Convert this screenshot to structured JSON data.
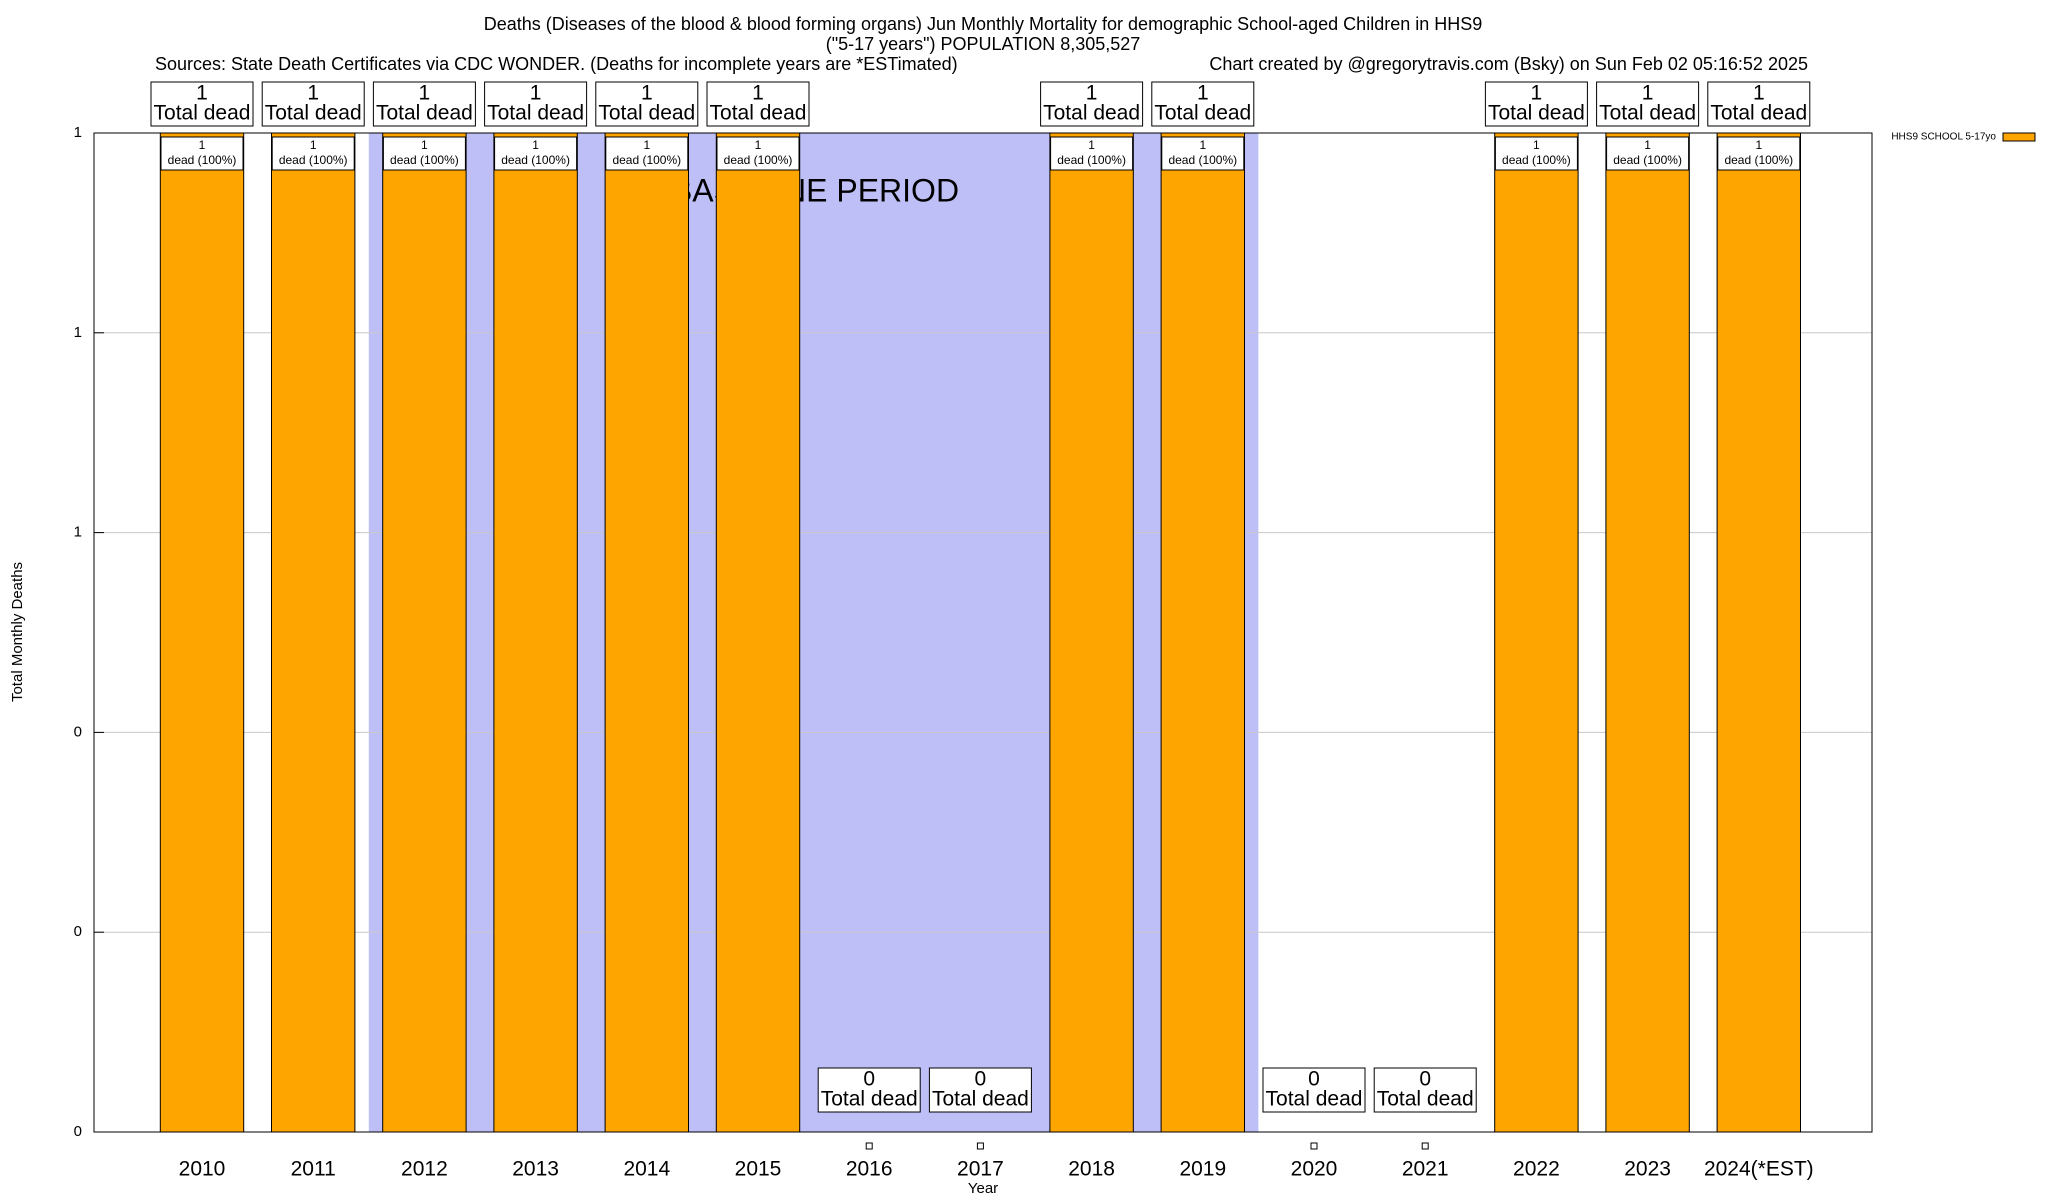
{
  "chart_data": {
    "type": "bar",
    "title": "Deaths (Diseases of the blood & blood forming organs) Jun Monthly Mortality for demographic School-aged Children in HHS9",
    "subtitle": "(\"5-17 years\") POPULATION 8,305,527",
    "source": "Sources: State Death Certificates via CDC WONDER. (Deaths for incomplete years are *ESTimated)",
    "credit": "Chart created by @gregorytravis.com (Bsky) on Sun Feb 02 05:16:52 2025",
    "x_label": "Year",
    "y_label": "Total Monthly Deaths",
    "categories": [
      "2010",
      "2011",
      "2012",
      "2013",
      "2014",
      "2015",
      "2016",
      "2017",
      "2018",
      "2019",
      "2020",
      "2021",
      "2022",
      "2023",
      "2024(*EST)"
    ],
    "series": [
      {
        "name": "HHS9 SCHOOL 5-17yo",
        "color": "#ffa500",
        "values": [
          1,
          1,
          1,
          1,
          1,
          1,
          0,
          0,
          1,
          1,
          0,
          0,
          1,
          1,
          1
        ]
      }
    ],
    "total_label": "Total dead",
    "share_labels": [
      "dead (100%)",
      "dead (100%)",
      "dead (100%)",
      "dead (100%)",
      "dead (100%)",
      "dead (100%)",
      null,
      null,
      "dead (100%)",
      "dead (100%)",
      null,
      null,
      "dead (100%)",
      "dead (100%)",
      "dead (100%)"
    ],
    "baseline": {
      "label": "BASELINE PERIOD",
      "from": "2012",
      "to": "2019",
      "color": "#bfbff8"
    },
    "ylim": [
      0,
      1
    ],
    "yticks": [
      0,
      {
        "value": 0.2,
        "label": "0"
      },
      {
        "value": 0.4,
        "label": "0"
      },
      {
        "value": 0.6,
        "label": "1"
      },
      {
        "value": 0.8,
        "label": "1"
      },
      1
    ],
    "grid": true,
    "legend": "top-right"
  }
}
